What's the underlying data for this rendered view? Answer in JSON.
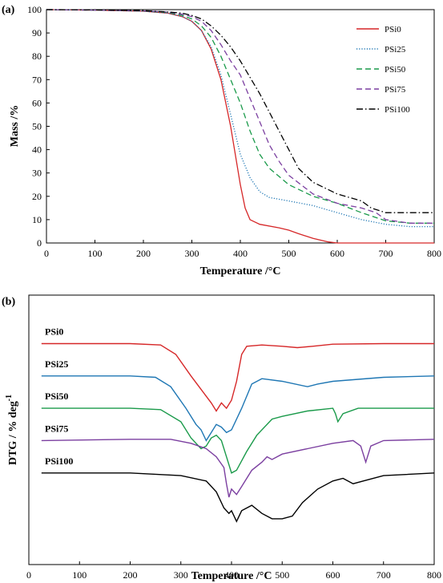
{
  "chart_data": [
    {
      "panel_label": "(a)",
      "type": "line",
      "title": "",
      "xlabel": "Temperature /°C",
      "ylabel": "Mass /%",
      "xlim": [
        0,
        800
      ],
      "ylim": [
        0,
        100
      ],
      "xticks": [
        0,
        100,
        200,
        300,
        400,
        500,
        600,
        700,
        800
      ],
      "yticks": [
        0,
        10,
        20,
        30,
        40,
        50,
        60,
        70,
        80,
        90,
        100
      ],
      "grid": false,
      "legend_position": "top-right",
      "series": [
        {
          "name": "PSi0",
          "color": "#d62728",
          "dash": "solid",
          "points": [
            [
              0,
              100
            ],
            [
              100,
              99.8
            ],
            [
              200,
              99.3
            ],
            [
              250,
              98.5
            ],
            [
              280,
              97
            ],
            [
              300,
              95
            ],
            [
              320,
              91
            ],
            [
              340,
              83
            ],
            [
              360,
              70
            ],
            [
              380,
              50
            ],
            [
              400,
              25
            ],
            [
              410,
              15
            ],
            [
              420,
              10
            ],
            [
              440,
              8
            ],
            [
              480,
              6.5
            ],
            [
              500,
              5.5
            ],
            [
              520,
              4
            ],
            [
              550,
              2
            ],
            [
              580,
              0.5
            ],
            [
              600,
              0
            ],
            [
              800,
              0
            ]
          ]
        },
        {
          "name": "PSi25",
          "color": "#1f77b4",
          "dash": "dot",
          "points": [
            [
              0,
              100
            ],
            [
              100,
              99.8
            ],
            [
              200,
              99.3
            ],
            [
              250,
              98.5
            ],
            [
              280,
              97
            ],
            [
              300,
              95
            ],
            [
              320,
              91
            ],
            [
              340,
              84
            ],
            [
              360,
              72
            ],
            [
              380,
              55
            ],
            [
              400,
              38
            ],
            [
              420,
              28
            ],
            [
              440,
              22
            ],
            [
              460,
              19.5
            ],
            [
              500,
              18
            ],
            [
              550,
              16
            ],
            [
              600,
              13
            ],
            [
              650,
              10
            ],
            [
              700,
              8
            ],
            [
              750,
              7
            ],
            [
              800,
              7
            ]
          ]
        },
        {
          "name": "PSi50",
          "color": "#1a9a4a",
          "dash": "dash",
          "points": [
            [
              0,
              100
            ],
            [
              100,
              99.8
            ],
            [
              200,
              99.4
            ],
            [
              250,
              98.8
            ],
            [
              280,
              97.5
            ],
            [
              300,
              96
            ],
            [
              320,
              93
            ],
            [
              340,
              88
            ],
            [
              360,
              80
            ],
            [
              380,
              70
            ],
            [
              390,
              65
            ],
            [
              400,
              60
            ],
            [
              420,
              48
            ],
            [
              440,
              38
            ],
            [
              460,
              32
            ],
            [
              500,
              25
            ],
            [
              550,
              20
            ],
            [
              600,
              17
            ],
            [
              650,
              13
            ],
            [
              700,
              9.5
            ],
            [
              750,
              8.5
            ],
            [
              800,
              8.5
            ]
          ]
        },
        {
          "name": "PSi75",
          "color": "#7b3fa0",
          "dash": "dash",
          "points": [
            [
              0,
              100
            ],
            [
              100,
              99.8
            ],
            [
              200,
              99.5
            ],
            [
              250,
              99
            ],
            [
              280,
              98
            ],
            [
              300,
              97
            ],
            [
              320,
              95
            ],
            [
              340,
              91
            ],
            [
              360,
              85
            ],
            [
              380,
              78
            ],
            [
              400,
              72
            ],
            [
              420,
              62
            ],
            [
              440,
              52
            ],
            [
              460,
              42
            ],
            [
              480,
              35
            ],
            [
              500,
              29
            ],
            [
              550,
              21
            ],
            [
              600,
              17
            ],
            [
              650,
              15
            ],
            [
              680,
              13
            ],
            [
              700,
              10
            ],
            [
              750,
              8.5
            ],
            [
              800,
              8.5
            ]
          ]
        },
        {
          "name": "PSi100",
          "color": "#000000",
          "dash": "dashdot",
          "points": [
            [
              0,
              100
            ],
            [
              100,
              99.9
            ],
            [
              200,
              99.6
            ],
            [
              250,
              99
            ],
            [
              280,
              98.5
            ],
            [
              300,
              97.5
            ],
            [
              320,
              96
            ],
            [
              340,
              93
            ],
            [
              360,
              89
            ],
            [
              380,
              84
            ],
            [
              400,
              78
            ],
            [
              420,
              71
            ],
            [
              440,
              64
            ],
            [
              460,
              56
            ],
            [
              480,
              48
            ],
            [
              500,
              40
            ],
            [
              520,
              32
            ],
            [
              550,
              26
            ],
            [
              600,
              21
            ],
            [
              650,
              18
            ],
            [
              670,
              15
            ],
            [
              700,
              13
            ],
            [
              750,
              13
            ],
            [
              800,
              13
            ]
          ]
        }
      ]
    },
    {
      "panel_label": "(b)",
      "type": "line",
      "title": "",
      "xlabel": "Temperature /°C",
      "ylabel": "DTG / % deg",
      "ylabel_superscript": "-1",
      "xlim": [
        0,
        800
      ],
      "xticks": [
        0,
        100,
        200,
        300,
        400,
        500,
        600,
        700,
        800
      ],
      "y_axis_values_shown": false,
      "grid": false,
      "note": "stacked curves; values are approximate plotted positions in arbitrary units (0 = bottom of axis, 100 = top)",
      "series": [
        {
          "name": "PSi0",
          "color": "#d62728",
          "points": [
            [
              25,
              82
            ],
            [
              200,
              82
            ],
            [
              260,
              81.5
            ],
            [
              290,
              78
            ],
            [
              320,
              70
            ],
            [
              340,
              65
            ],
            [
              360,
              60
            ],
            [
              370,
              57
            ],
            [
              380,
              60
            ],
            [
              390,
              58
            ],
            [
              400,
              61
            ],
            [
              410,
              68
            ],
            [
              420,
              78
            ],
            [
              430,
              81
            ],
            [
              460,
              81.5
            ],
            [
              500,
              81
            ],
            [
              530,
              80.5
            ],
            [
              560,
              81
            ],
            [
              600,
              81.8
            ],
            [
              700,
              82
            ],
            [
              800,
              82
            ]
          ]
        },
        {
          "name": "PSi25",
          "color": "#1f77b4",
          "points": [
            [
              25,
              70
            ],
            [
              200,
              70
            ],
            [
              250,
              69.5
            ],
            [
              280,
              66
            ],
            [
              310,
              58
            ],
            [
              330,
              52
            ],
            [
              340,
              50
            ],
            [
              350,
              46
            ],
            [
              360,
              49
            ],
            [
              370,
              52
            ],
            [
              380,
              51
            ],
            [
              390,
              49
            ],
            [
              400,
              50
            ],
            [
              420,
              58
            ],
            [
              440,
              67
            ],
            [
              460,
              69
            ],
            [
              500,
              68
            ],
            [
              550,
              66
            ],
            [
              570,
              67
            ],
            [
              600,
              68
            ],
            [
              700,
              69.5
            ],
            [
              800,
              70
            ]
          ]
        },
        {
          "name": "PSi50",
          "color": "#1a9a4a",
          "points": [
            [
              25,
              58
            ],
            [
              200,
              58
            ],
            [
              260,
              57.5
            ],
            [
              300,
              53
            ],
            [
              320,
              47
            ],
            [
              340,
              43
            ],
            [
              350,
              44
            ],
            [
              360,
              47
            ],
            [
              370,
              48
            ],
            [
              380,
              46
            ],
            [
              390,
              40
            ],
            [
              400,
              34
            ],
            [
              410,
              35
            ],
            [
              430,
              42
            ],
            [
              450,
              48
            ],
            [
              480,
              54
            ],
            [
              500,
              55
            ],
            [
              550,
              57
            ],
            [
              600,
              58
            ],
            [
              605,
              56
            ],
            [
              610,
              53
            ],
            [
              620,
              56
            ],
            [
              650,
              58
            ],
            [
              800,
              58
            ]
          ]
        },
        {
          "name": "PSi75",
          "color": "#7b3fa0",
          "points": [
            [
              25,
              46
            ],
            [
              200,
              46.5
            ],
            [
              280,
              46.5
            ],
            [
              320,
              45
            ],
            [
              350,
              43
            ],
            [
              370,
              40
            ],
            [
              385,
              36
            ],
            [
              390,
              30
            ],
            [
              395,
              25
            ],
            [
              400,
              28
            ],
            [
              410,
              26
            ],
            [
              420,
              29
            ],
            [
              440,
              35
            ],
            [
              460,
              38
            ],
            [
              470,
              40
            ],
            [
              480,
              39
            ],
            [
              500,
              41
            ],
            [
              550,
              43
            ],
            [
              600,
              45
            ],
            [
              640,
              46
            ],
            [
              655,
              44
            ],
            [
              665,
              38
            ],
            [
              675,
              44
            ],
            [
              700,
              46
            ],
            [
              800,
              46.5
            ]
          ]
        },
        {
          "name": "PSi100",
          "color": "#000000",
          "points": [
            [
              25,
              34
            ],
            [
              200,
              34
            ],
            [
              300,
              33
            ],
            [
              350,
              31
            ],
            [
              370,
              27
            ],
            [
              385,
              21
            ],
            [
              395,
              19
            ],
            [
              400,
              20
            ],
            [
              410,
              16
            ],
            [
              420,
              20
            ],
            [
              440,
              22
            ],
            [
              460,
              19
            ],
            [
              480,
              17
            ],
            [
              500,
              17
            ],
            [
              520,
              18
            ],
            [
              540,
              23
            ],
            [
              570,
              28
            ],
            [
              600,
              31
            ],
            [
              620,
              32
            ],
            [
              640,
              30
            ],
            [
              660,
              31
            ],
            [
              700,
              33
            ],
            [
              800,
              34
            ]
          ]
        }
      ]
    }
  ]
}
